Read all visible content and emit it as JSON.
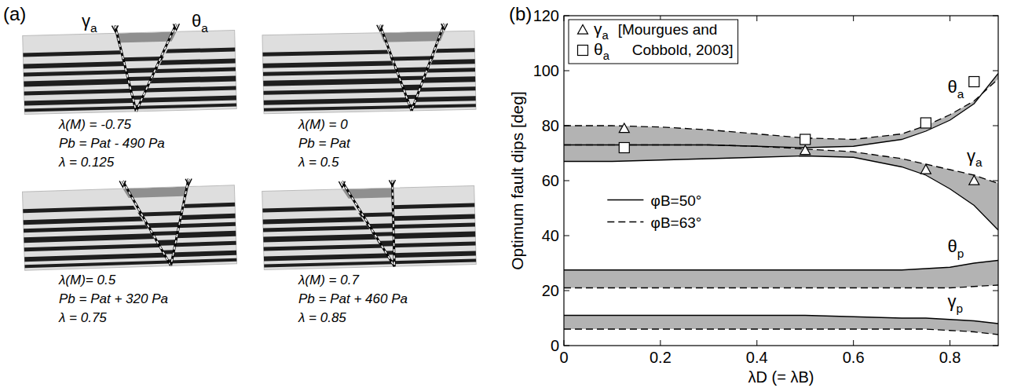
{
  "panel_a": {
    "letter": "(a)",
    "angle_labels": [
      "γa",
      "θa"
    ],
    "experiments": [
      {
        "lines": [
          "λ(M) = -0.75",
          "Pb = Pat - 490 Pa",
          "λ = 0.125"
        ]
      },
      {
        "lines": [
          "λ(M) = 0",
          "Pb = Pat",
          "λ = 0.5"
        ]
      },
      {
        "lines": [
          "λ(M)= 0.5",
          "Pb = Pat + 320 Pa",
          "λ = 0.75"
        ]
      },
      {
        "lines": [
          "λ(M) = 0.7",
          "Pb = Pat + 460 Pa",
          "λ = 0.85"
        ]
      }
    ]
  },
  "chart_data": {
    "letter": "(b)",
    "type": "line",
    "xlabel": "λD (= λB)",
    "ylabel": "Optimum fault dips [deg]",
    "xlim": [
      0,
      0.9
    ],
    "ylim": [
      0,
      120
    ],
    "xticks": [
      0,
      0.2,
      0.4,
      0.6,
      0.8
    ],
    "yticks": [
      0,
      20,
      40,
      60,
      80,
      100,
      120
    ],
    "color": "#b3b3b3",
    "legend": "top-left",
    "x": [
      0,
      0.1,
      0.2,
      0.3,
      0.4,
      0.5,
      0.6,
      0.7,
      0.75,
      0.8,
      0.85,
      0.9
    ],
    "series": [
      {
        "name": "φB=50°",
        "line_style": "solid",
        "color": "#000000",
        "curves": [
          {
            "label": "θa",
            "values": [
              73,
              73,
              73,
              73,
              72.5,
              72,
              72.5,
              75,
              78,
              82,
              88,
              99
            ]
          },
          {
            "label": "γa",
            "values": [
              67,
              67,
              67.5,
              68,
              68.5,
              69,
              68.5,
              65,
              62,
              57,
              51,
              42
            ]
          },
          {
            "label": "θp",
            "values": [
              27.5,
              27.5,
              27.5,
              27.5,
              27.5,
              27.5,
              27.5,
              27.5,
              28,
              28.5,
              30,
              31
            ]
          },
          {
            "label": "γp",
            "values": [
              11,
              11,
              11,
              11,
              11,
              11,
              10.5,
              10,
              10,
              9.5,
              9,
              8
            ]
          }
        ]
      },
      {
        "name": "φB=63°",
        "line_style": "dashed",
        "color": "#000000",
        "curves": [
          {
            "values": [
              80,
              80,
              79.5,
              78.5,
              77,
              75.5,
              75,
              77,
              80,
              84,
              89,
              97
            ]
          },
          {
            "values": [
              73,
              73,
              73,
              73,
              72.5,
              71.5,
              70.5,
              68,
              66,
              64,
              62,
              59
            ]
          },
          {
            "values": [
              21,
              21,
              21,
              21,
              21,
              21,
              21,
              21,
              21,
              21,
              21.5,
              22
            ]
          },
          {
            "values": [
              6,
              6,
              6,
              6,
              6,
              6,
              6,
              6,
              6,
              5.5,
              5,
              4
            ]
          }
        ]
      }
    ],
    "points": [
      {
        "name": "γa",
        "marker": "triangle",
        "x": [
          0.125,
          0.5,
          0.75,
          0.85
        ],
        "values": [
          79,
          71,
          64,
          60
        ]
      },
      {
        "name": "θa",
        "marker": "square",
        "x": [
          0.125,
          0.5,
          0.75,
          0.85
        ],
        "values": [
          72,
          75,
          81,
          96
        ]
      }
    ],
    "source": [
      "[Mourgues and",
      "Cobbold, 2003]"
    ]
  }
}
